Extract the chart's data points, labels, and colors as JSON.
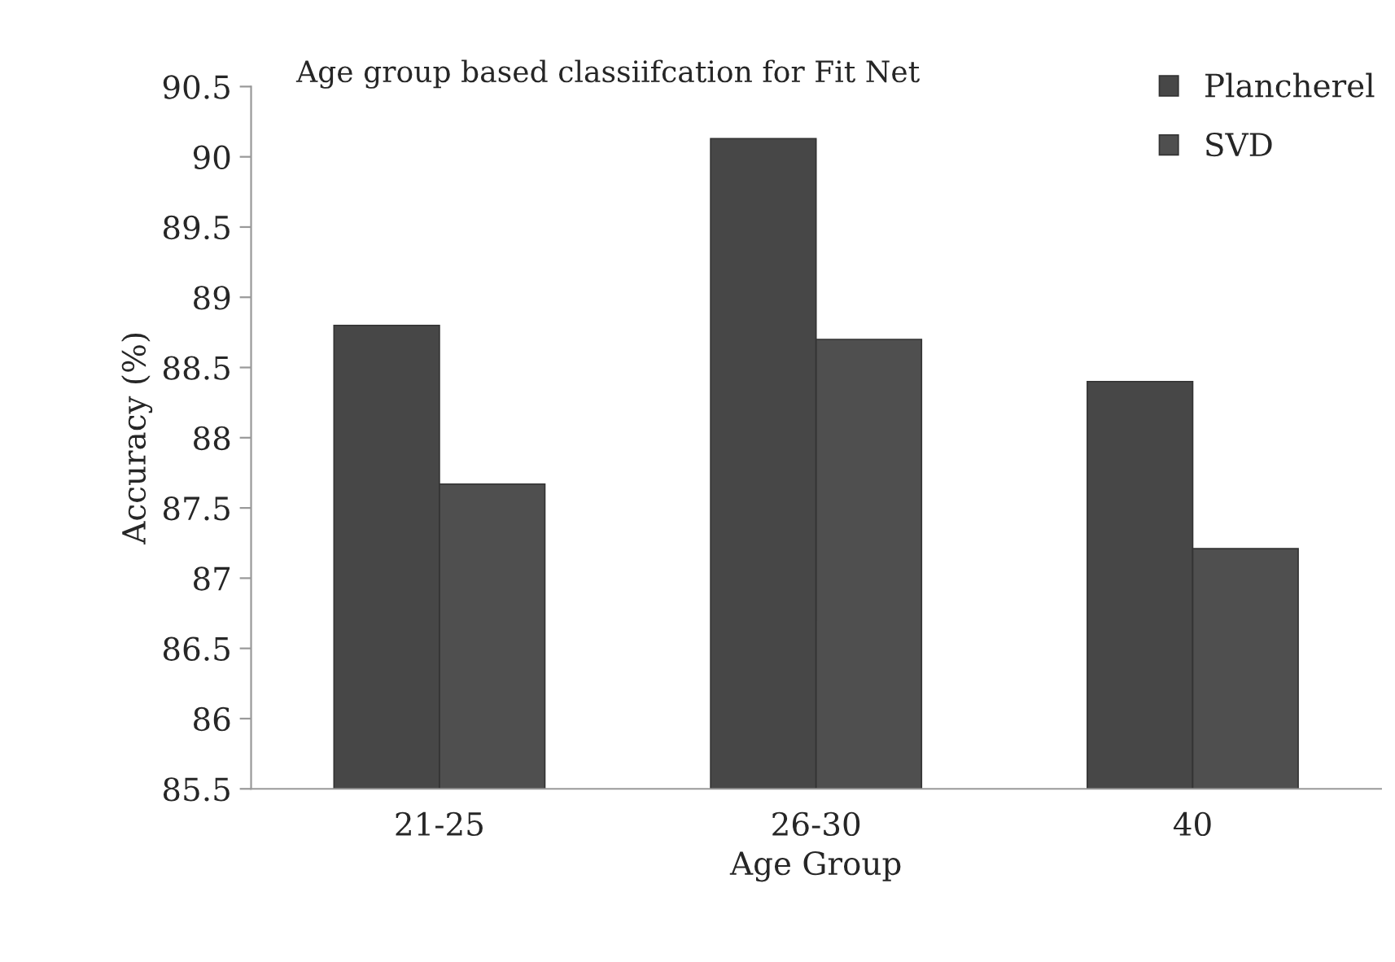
{
  "chart_data": {
    "type": "bar",
    "title": "Age group based classiifcation for Fit Net",
    "xlabel": "Age Group",
    "ylabel": "Accuracy (%)",
    "categories": [
      "21-25",
      "26-30",
      "40"
    ],
    "series": [
      {
        "name": "Plancherel",
        "color": "#474747",
        "values": [
          88.8,
          90.13,
          88.4
        ]
      },
      {
        "name": "SVD",
        "color": "#4f4f4f",
        "values": [
          87.67,
          88.7,
          87.21
        ]
      }
    ],
    "ylim": [
      85.5,
      90.5
    ],
    "yticks": [
      {
        "value": 85.5,
        "label": "85.5"
      },
      {
        "value": 86,
        "label": "86"
      },
      {
        "value": 86.5,
        "label": "86.5"
      },
      {
        "value": 87,
        "label": "87"
      },
      {
        "value": 87.5,
        "label": "87.5"
      },
      {
        "value": 88,
        "label": "88"
      },
      {
        "value": 88.5,
        "label": "88.5"
      },
      {
        "value": 89,
        "label": "89"
      },
      {
        "value": 89.5,
        "label": "89.5"
      },
      {
        "value": 90,
        "label": "90"
      },
      {
        "value": 90.5,
        "label": "90.5"
      }
    ],
    "grid": false,
    "legend": "top right"
  }
}
